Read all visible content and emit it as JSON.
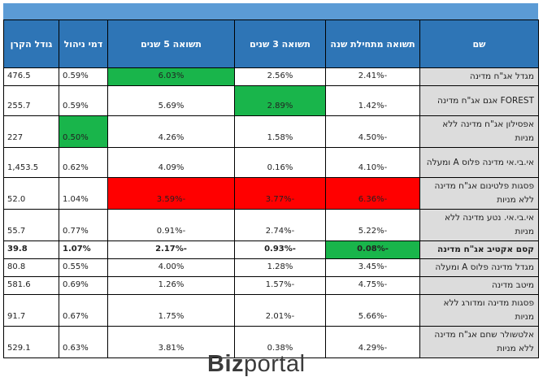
{
  "header": {
    "name": "שם",
    "ytd": "תשואה מתחילת שנה",
    "y3": "תשואה 3 שנים",
    "y5": "תשואה 5 שנים",
    "fee": "דמי ניהול",
    "size": "גודל הקרן"
  },
  "rows": [
    {
      "name": "מגדל אג\"ח מדינה",
      "ytd": "-2.41%",
      "y3": "2.56%",
      "y5": "6.03%",
      "fee": "0.59%",
      "size": "476.5"
    },
    {
      "name": "FOREST אגם אג\"ח מדינה",
      "ytd": "-1.42%",
      "y3": "2.89%",
      "y5": "5.69%",
      "fee": "0.59%",
      "size": "255.7"
    },
    {
      "name": "אפסילון אג\"ח מדינה ללא מניות",
      "ytd": "-4.50%",
      "y3": "1.58%",
      "y5": "4.26%",
      "fee": "0.50%",
      "size": "227"
    },
    {
      "name": "אי.בי.אי מדינה פלוס A ומעלה",
      "ytd": "-4.10%",
      "y3": "0.16%",
      "y5": "4.09%",
      "fee": "0.62%",
      "size": "1,453.5"
    },
    {
      "name": "פסגות פלטינום אג\"ח מדינה ללא מניות",
      "ytd": "-6.36%",
      "y3": "-3.77%",
      "y5": "-3.59%",
      "fee": "1.04%",
      "size": "52.0"
    },
    {
      "name": "אי.בי.אי. נטע מדינה ללא מניות",
      "ytd": "-5.22%",
      "y3": "-2.74%",
      "y5": "-0.91%",
      "fee": "0.77%",
      "size": "55.7"
    },
    {
      "name": "קסם אקטיב אג\"ח מדינה",
      "ytd": "-0.08%",
      "y3": "-0.93%",
      "y5": "-2.17%",
      "fee": "1.07%",
      "size": "39.8"
    },
    {
      "name": "מגדל מדינה פלוס A ומעלה",
      "ytd": "-3.45%",
      "y3": "1.28%",
      "y5": "4.00%",
      "fee": "0.55%",
      "size": "80.8"
    },
    {
      "name": "מיטב מדינה",
      "ytd": "-4.75%",
      "y3": "-1.57%",
      "y5": "1.26%",
      "fee": "0.69%",
      "size": "581.6"
    },
    {
      "name": "פסגות מדינה ומדורג ללא מניות",
      "ytd": "-5.66%",
      "y3": "-2.01%",
      "y5": "1.75%",
      "fee": "0.67%",
      "size": "91.7"
    },
    {
      "name": "אלטשולר שחם אג\"ח מדינה ללא מניות",
      "ytd": "-4.29%",
      "y3": "0.38%",
      "y5": "3.81%",
      "fee": "0.63%",
      "size": "529.1"
    }
  ],
  "colors": {
    "header_bg": "#2e75b6",
    "top_band": "#5b9bd5",
    "name_bg": "#dcdcdc",
    "best": "#19b54b",
    "worst": "#ff0000"
  },
  "logo": {
    "part1": "Biz",
    "part2": "portal"
  }
}
